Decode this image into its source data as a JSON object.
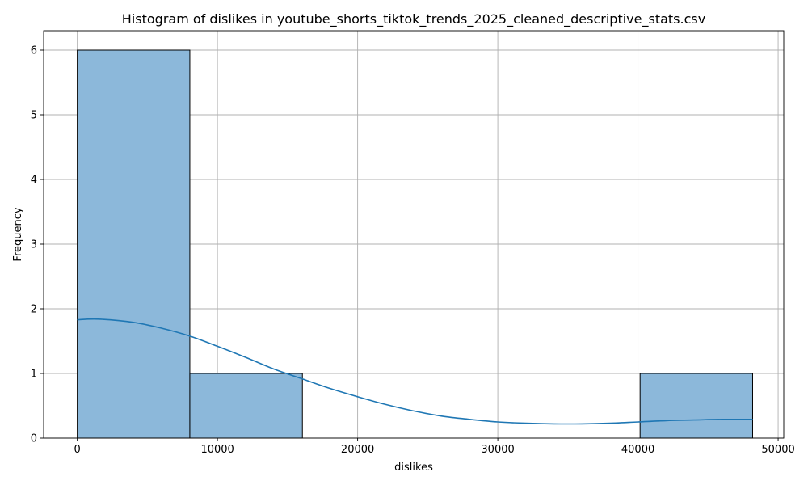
{
  "chart_data": {
    "type": "bar",
    "title": "Histogram of dislikes in youtube_shorts_tiktok_trends_2025_cleaned_descriptive_stats.csv",
    "xlabel": "dislikes",
    "ylabel": "Frequency",
    "xlim": [
      -2400,
      50400
    ],
    "ylim": [
      0,
      6.3
    ],
    "xticks": [
      0,
      10000,
      20000,
      30000,
      40000,
      50000
    ],
    "xtick_labels": [
      "0",
      "10000",
      "20000",
      "30000",
      "40000",
      "50000"
    ],
    "yticks": [
      0,
      1,
      2,
      3,
      4,
      5,
      6
    ],
    "ytick_labels": [
      "0",
      "1",
      "2",
      "3",
      "4",
      "5",
      "6"
    ],
    "grid": true,
    "bins": [
      {
        "start": 0,
        "end": 8030,
        "count": 6
      },
      {
        "start": 8030,
        "end": 16060,
        "count": 1
      },
      {
        "start": 16060,
        "end": 24090,
        "count": 0
      },
      {
        "start": 24090,
        "end": 32120,
        "count": 0
      },
      {
        "start": 32120,
        "end": 40150,
        "count": 0
      },
      {
        "start": 40150,
        "end": 48180,
        "count": 1
      }
    ],
    "kde": {
      "x": [
        0,
        1500,
        4000,
        6000,
        8000,
        10000,
        12000,
        14000,
        16000,
        18000,
        20000,
        22000,
        24000,
        26000,
        28000,
        30000,
        32000,
        34000,
        36000,
        38000,
        40000,
        42000,
        44000,
        46000,
        48180
      ],
      "y": [
        1.83,
        1.84,
        1.79,
        1.7,
        1.58,
        1.42,
        1.25,
        1.07,
        0.92,
        0.77,
        0.64,
        0.52,
        0.42,
        0.34,
        0.29,
        0.25,
        0.23,
        0.22,
        0.22,
        0.23,
        0.25,
        0.27,
        0.28,
        0.29,
        0.29
      ]
    },
    "colors": {
      "bar_fill": "#8cb8da",
      "bar_edge": "#000000",
      "kde_line": "#1f77b4",
      "grid": "#b0b0b0"
    }
  }
}
